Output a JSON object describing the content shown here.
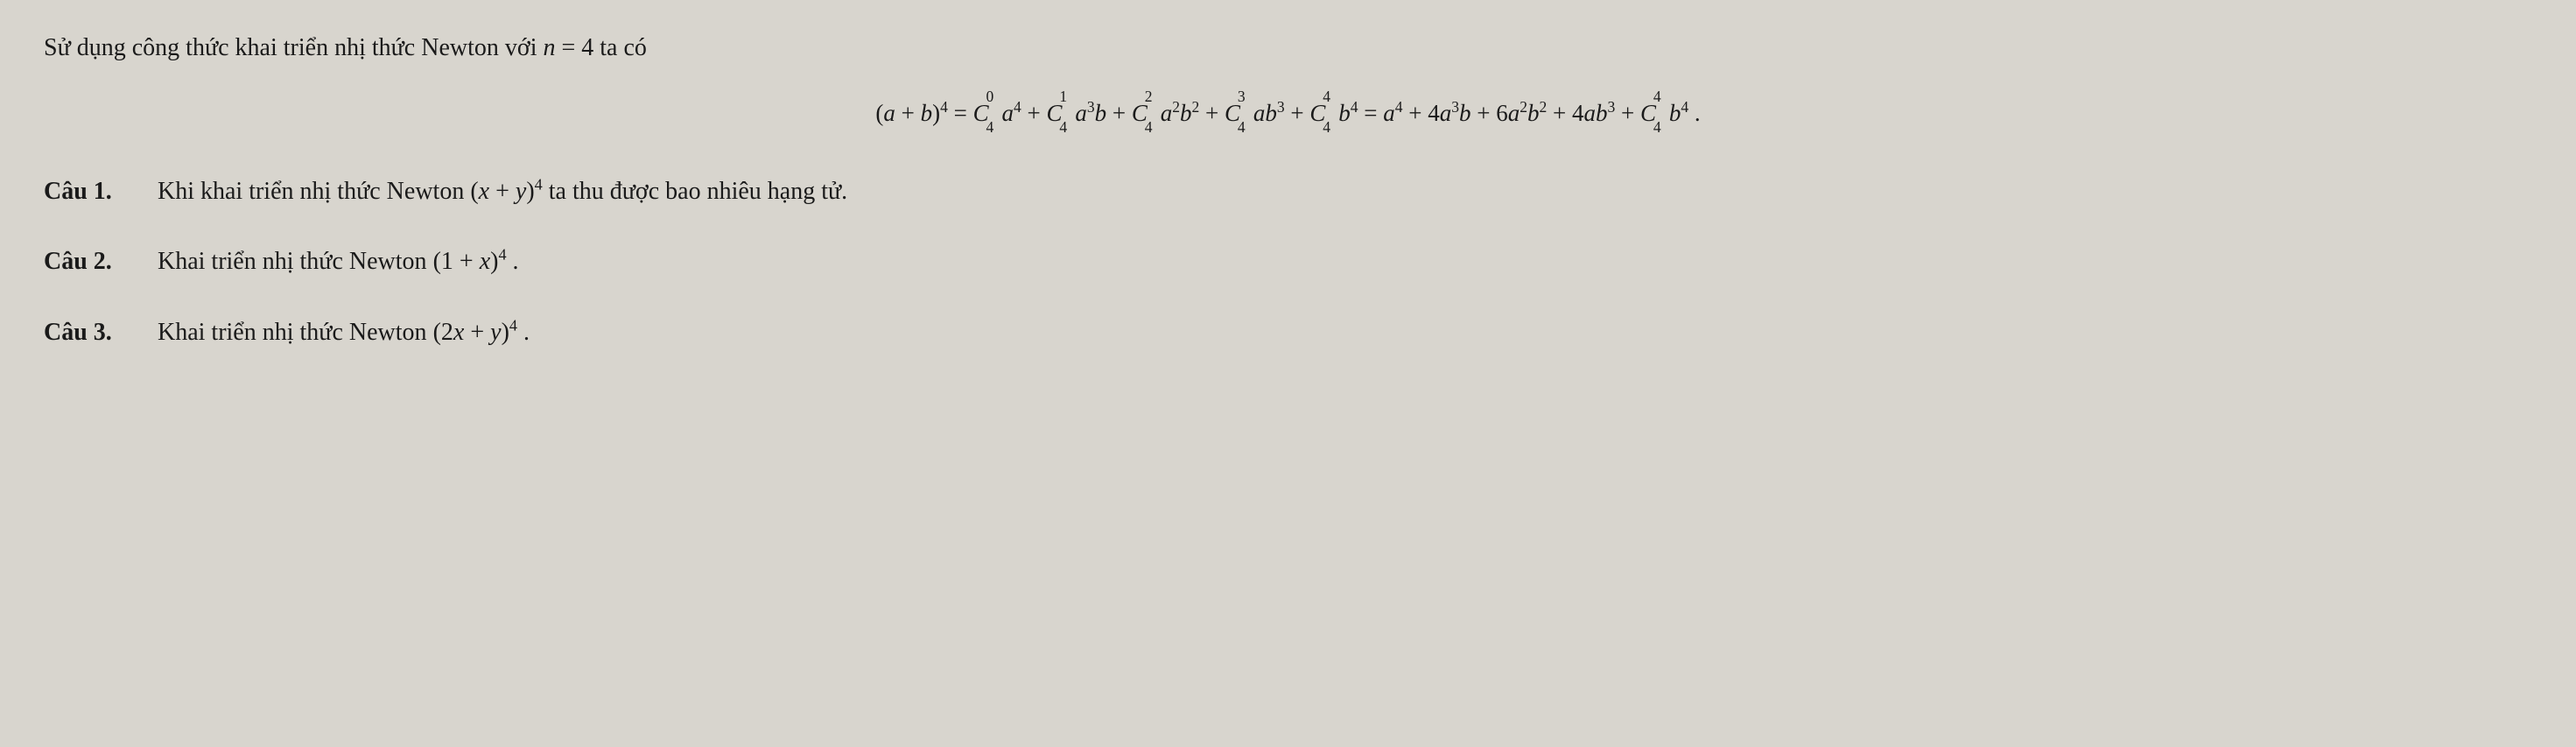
{
  "intro": {
    "prefix": "Sử dụng công thức khai triển nhị thức Newton với ",
    "var": "n",
    "eq": " = 4",
    "suffix": " ta có"
  },
  "formula": {
    "lhs_open": "(",
    "lhs_a": "a",
    "lhs_plus": " + ",
    "lhs_b": "b",
    "lhs_close": ")",
    "lhs_exp": "4",
    "eq": " = ",
    "c0_sup": "0",
    "c0_sub": "4",
    "c1_sup": "1",
    "c1_sub": "4",
    "c2_sup": "2",
    "c2_sub": "4",
    "c3_sup": "3",
    "c3_sub": "4",
    "c4_sup": "4",
    "c4_sub": "4",
    "a": "a",
    "b": "b",
    "exp4": "4",
    "exp3": "3",
    "exp2": "2",
    "plus": " + ",
    "eq2": " = ",
    "coef4": "4",
    "coef6": "6",
    "period": " ."
  },
  "q1": {
    "label": "Câu 1.",
    "prefix": "Khi khai triển nhị thức Newton ",
    "open": "(",
    "x": "x",
    "plus": " + ",
    "y": "y",
    "close": ")",
    "exp": "4",
    "suffix": " ta thu được bao nhiêu hạng tử."
  },
  "q2": {
    "label": "Câu 2.",
    "prefix": "Khai triển nhị thức Newton ",
    "open": "(",
    "one": "1",
    "plus": " + ",
    "x": "x",
    "close": ")",
    "exp": "4",
    "suffix": " ."
  },
  "q3": {
    "label": "Câu 3.",
    "prefix": "Khai triển nhị thức Newton ",
    "open": "(",
    "coef": "2",
    "x": "x",
    "plus": " + ",
    "y": "y",
    "close": ")",
    "exp": "4",
    "suffix": " ."
  }
}
